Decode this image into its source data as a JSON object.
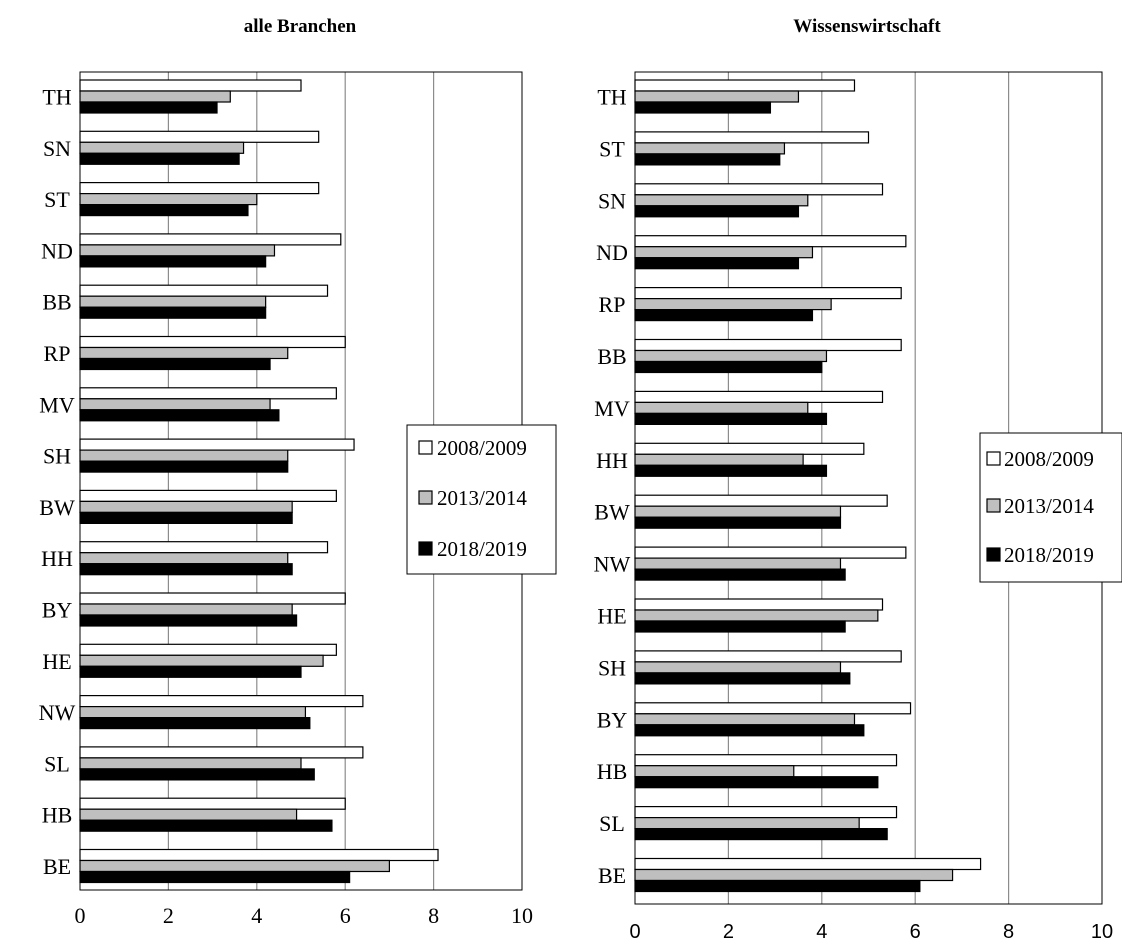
{
  "chart_data": [
    {
      "type": "bar",
      "orientation": "horizontal",
      "title": "alle Branchen",
      "categories": [
        "TH",
        "SN",
        "ST",
        "ND",
        "BB",
        "RP",
        "MV",
        "SH",
        "BW",
        "HH",
        "BY",
        "HE",
        "NW",
        "SL",
        "HB",
        "BE"
      ],
      "series": [
        {
          "name": "2008/2009",
          "color": "#ffffff",
          "values": [
            5.0,
            5.4,
            5.4,
            5.9,
            5.6,
            6.0,
            5.8,
            6.2,
            5.8,
            5.6,
            6.0,
            5.8,
            6.4,
            6.4,
            6.0,
            8.1
          ]
        },
        {
          "name": "2013/2014",
          "color": "#bfbfbf",
          "values": [
            3.4,
            3.7,
            4.0,
            4.4,
            4.2,
            4.7,
            4.3,
            4.7,
            4.8,
            4.7,
            4.8,
            5.5,
            5.1,
            5.0,
            4.9,
            7.0
          ]
        },
        {
          "name": "2018/2019",
          "color": "#000000",
          "values": [
            3.1,
            3.6,
            3.8,
            4.2,
            4.2,
            4.3,
            4.5,
            4.7,
            4.8,
            4.8,
            4.9,
            5.0,
            5.2,
            5.3,
            5.7,
            6.1
          ]
        }
      ],
      "xlim": [
        0,
        10
      ],
      "xticks": [
        0,
        2,
        4,
        6,
        8,
        10
      ],
      "grid": "vertical",
      "legend": "right-center"
    },
    {
      "type": "bar",
      "orientation": "horizontal",
      "title": "Wissenswirtschaft",
      "categories": [
        "TH",
        "ST",
        "SN",
        "ND",
        "RP",
        "BB",
        "MV",
        "HH",
        "BW",
        "NW",
        "HE",
        "SH",
        "BY",
        "HB",
        "SL",
        "BE"
      ],
      "series": [
        {
          "name": "2008/2009",
          "color": "#ffffff",
          "values": [
            4.7,
            5.0,
            5.3,
            5.8,
            5.7,
            5.7,
            5.3,
            4.9,
            5.4,
            5.8,
            5.3,
            5.7,
            5.9,
            5.6,
            5.6,
            7.4
          ]
        },
        {
          "name": "2013/2014",
          "color": "#bfbfbf",
          "values": [
            3.5,
            3.2,
            3.7,
            3.8,
            4.2,
            4.1,
            3.7,
            3.6,
            4.4,
            4.4,
            5.2,
            4.4,
            4.7,
            3.4,
            4.8,
            6.8
          ]
        },
        {
          "name": "2018/2019",
          "color": "#000000",
          "values": [
            2.9,
            3.1,
            3.5,
            3.5,
            3.8,
            4.0,
            4.1,
            4.1,
            4.4,
            4.5,
            4.5,
            4.6,
            4.9,
            5.2,
            5.4,
            6.1
          ]
        }
      ],
      "xlim": [
        0,
        10
      ],
      "xticks": [
        0,
        2,
        4,
        6,
        8,
        10
      ],
      "grid": "vertical",
      "legend": "right-center"
    }
  ]
}
